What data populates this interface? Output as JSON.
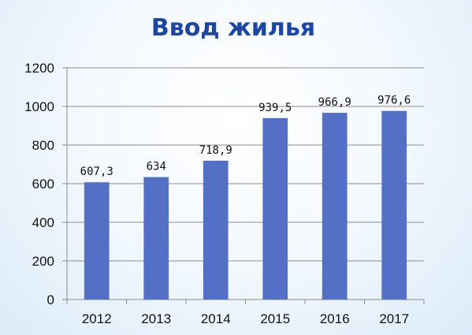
{
  "chart_data": {
    "type": "bar",
    "title": "Ввод жилья",
    "categories": [
      "2012",
      "2013",
      "2014",
      "2015",
      "2016",
      "2017"
    ],
    "values": [
      607.3,
      634,
      718.9,
      939.5,
      966.9,
      976.6
    ],
    "data_labels": [
      "607,3",
      "634",
      "718,9",
      "939,5",
      "966,9",
      "976,6"
    ],
    "yticks": [
      "0",
      "200",
      "400",
      "600",
      "800",
      "1000",
      "1200"
    ],
    "ylim": [
      0,
      1200
    ],
    "grid": true,
    "xlabel": "",
    "ylabel": "",
    "bar_color": "#5470c6",
    "title_color": "#1b46a6"
  }
}
